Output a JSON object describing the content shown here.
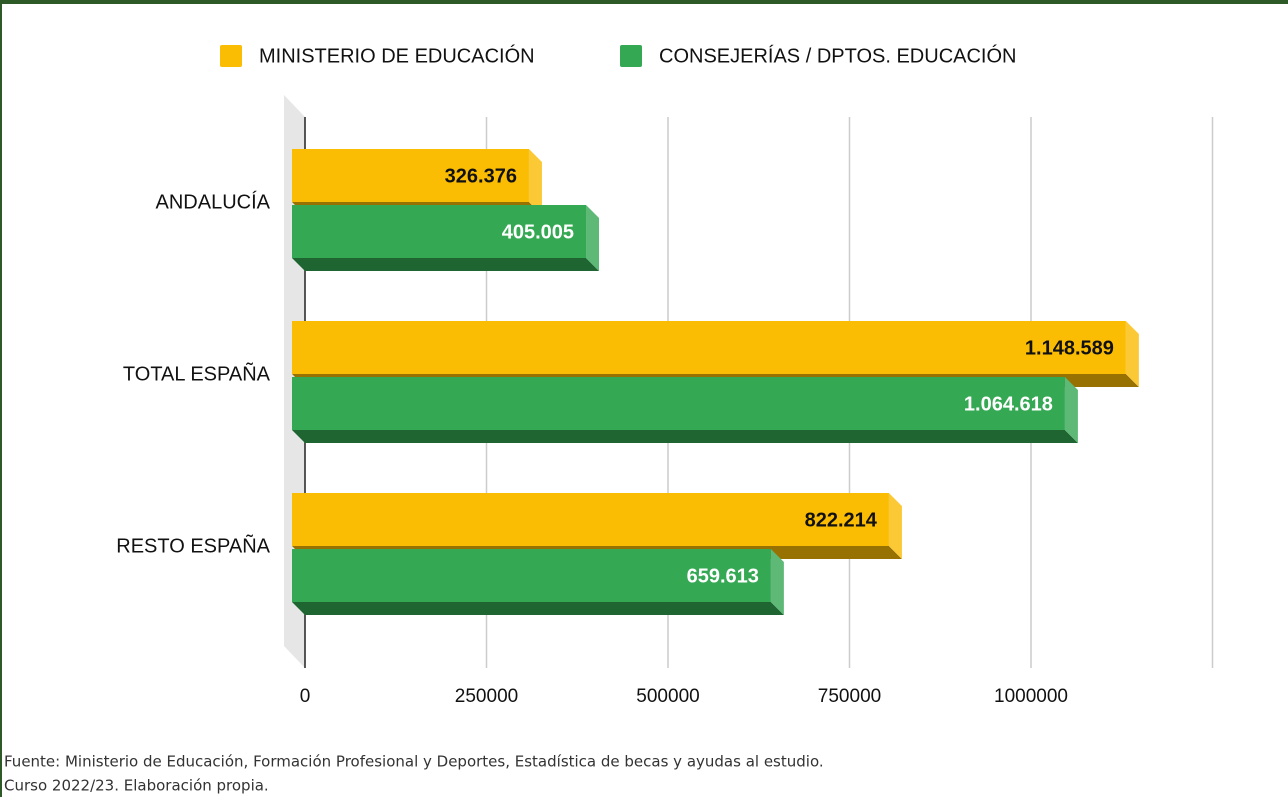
{
  "chart_data": {
    "type": "bar3d_horizontal",
    "categories": [
      "ANDALUCÍA",
      "TOTAL ESPAÑA",
      "RESTO ESPAÑA"
    ],
    "series": [
      {
        "name": "MINISTERIO DE EDUCACIÓN",
        "color": "#fbbc04",
        "values": [
          326376,
          1148589,
          822214
        ],
        "value_labels": [
          "326.376",
          "1.148.589",
          "822.214"
        ]
      },
      {
        "name": "CONSEJERÍAS / DPTOS. EDUCACIÓN",
        "color": "#34a853",
        "values": [
          405005,
          1064618,
          659613
        ],
        "value_labels": [
          "405.005",
          "1.064.618",
          "659.613"
        ]
      }
    ],
    "xlim": [
      0,
      1250000
    ],
    "xticks": [
      0,
      250000,
      500000,
      750000,
      1000000
    ],
    "grid": true,
    "legend": "top",
    "source": [
      "Fuente: Ministerio de Educación, Formación Profesional y Deportes, Estadística de becas y ayudas al estudio.",
      "Curso 2022/23. Elaboración propia."
    ]
  }
}
